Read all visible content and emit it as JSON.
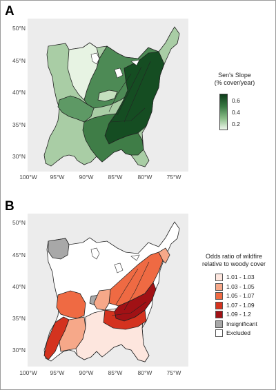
{
  "panel_a": {
    "letter": "A",
    "y_ticks": [
      "50°N",
      "45°N",
      "40°N",
      "35°N",
      "30°N"
    ],
    "x_ticks": [
      "100°W",
      "95°W",
      "90°W",
      "85°W",
      "80°W",
      "75°W"
    ],
    "legend": {
      "title_line1": "Sen's Slope",
      "title_line2": "(% cover/year)",
      "breaks": [
        "0.6",
        "0.4",
        "0.2"
      ],
      "color_low": "#eef7ec",
      "color_high": "#0e3d1a"
    }
  },
  "panel_b": {
    "letter": "B",
    "y_ticks": [
      "50°N",
      "45°N",
      "40°N",
      "35°N",
      "30°N"
    ],
    "x_ticks": [
      "100°W",
      "95°W",
      "90°W",
      "85°W",
      "80°W",
      "75°W"
    ],
    "legend": {
      "title_line1": "Odds ratio of wildfire",
      "title_line2": "relative to woody cover",
      "items": [
        {
          "label": "1.01 - 1.03",
          "color": "#fde6de"
        },
        {
          "label": "1.03 - 1.05",
          "color": "#f6a889"
        },
        {
          "label": "1.05 - 1.07",
          "color": "#ef6a43"
        },
        {
          "label": "1.07 - 1.09",
          "color": "#d4331f"
        },
        {
          "label": "1.09 - 1.2",
          "color": "#a11115"
        },
        {
          "label": "Insignificant",
          "color": "#a8a8a8"
        },
        {
          "label": "Excluded",
          "color": "#ffffff"
        }
      ]
    }
  },
  "colors": {
    "map_background": "#ececec",
    "green_dark": "#154d22",
    "green_mid": "#4d8a55",
    "green_light": "#a9cda5",
    "green_pale": "#e7f3e3"
  }
}
